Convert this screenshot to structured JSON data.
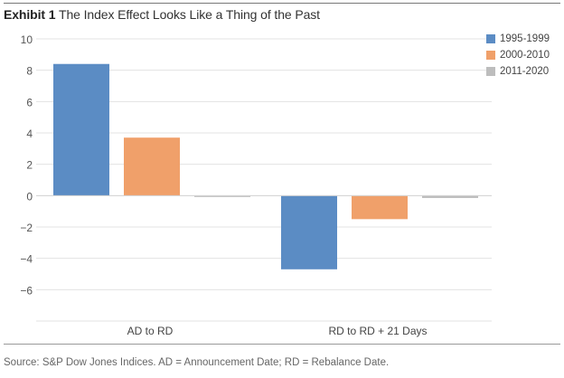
{
  "header": {
    "exhibit_label": "Exhibit 1",
    "title_text": "The Index Effect Looks Like a Thing of the Past"
  },
  "footer": {
    "source": "Source: S&P Dow Jones Indices. AD = Announcement Date; RD = Rebalance Date."
  },
  "chart_data": {
    "type": "bar",
    "categories": [
      "AD to RD",
      "RD to RD + 21 Days"
    ],
    "series": [
      {
        "name": "1995-1999",
        "color": "#5b8cc4",
        "values": [
          8.4,
          -4.7
        ]
      },
      {
        "name": "2000-2010",
        "color": "#f0a06a",
        "values": [
          3.7,
          -1.5
        ]
      },
      {
        "name": "2011-2020",
        "color": "#bdbdbd",
        "values": [
          -0.08,
          -0.15
        ]
      }
    ],
    "yticks": [
      10,
      8,
      6,
      4,
      2,
      0,
      -2,
      -4,
      -6
    ],
    "ytick_labels": [
      "10",
      "8",
      "6",
      "4",
      "2",
      "0",
      "−2",
      "−4",
      "−6"
    ],
    "ylim": [
      -8,
      10
    ],
    "grid": true,
    "legend_position": "top-right"
  }
}
